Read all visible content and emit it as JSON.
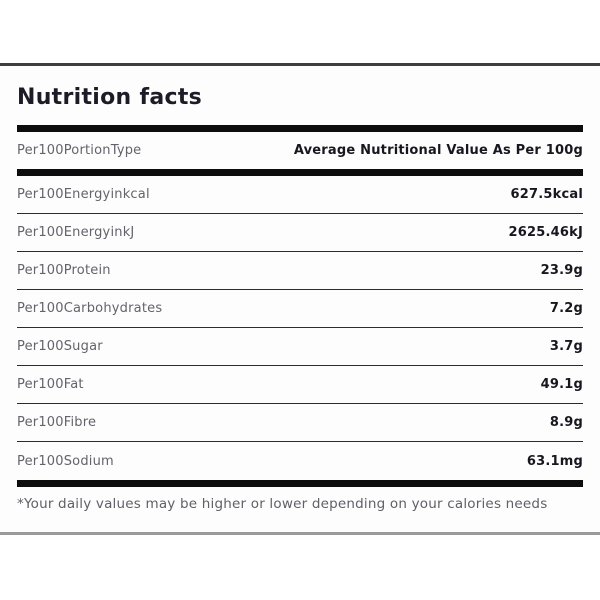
{
  "title": "Nutrition facts",
  "header": {
    "label": "Per100PortionType",
    "value": "Average Nutritional Value As Per 100g"
  },
  "rows": [
    {
      "label": "Per100Energyinkcal",
      "value": "627.5kcal"
    },
    {
      "label": "Per100EnergyinkJ",
      "value": "2625.46kJ"
    },
    {
      "label": "Per100Protein",
      "value": "23.9g"
    },
    {
      "label": "Per100Carbohydrates",
      "value": "7.2g"
    },
    {
      "label": "Per100Sugar",
      "value": "3.7g"
    },
    {
      "label": "Per100Fat",
      "value": "49.1g"
    },
    {
      "label": "Per100Fibre",
      "value": "8.9g"
    },
    {
      "label": "Per100Sodium",
      "value": "63.1mg"
    }
  ],
  "footnote": "*Your daily values may be higher or lower depending on your calories needs",
  "colors": {
    "bar": "#0d0d0d",
    "divider": "#2b2b31",
    "label_gray": "#63636b",
    "value_dark": "#17171f",
    "card_top_border": "#3e3e3e",
    "card_bottom_border": "#9a9a9a"
  }
}
